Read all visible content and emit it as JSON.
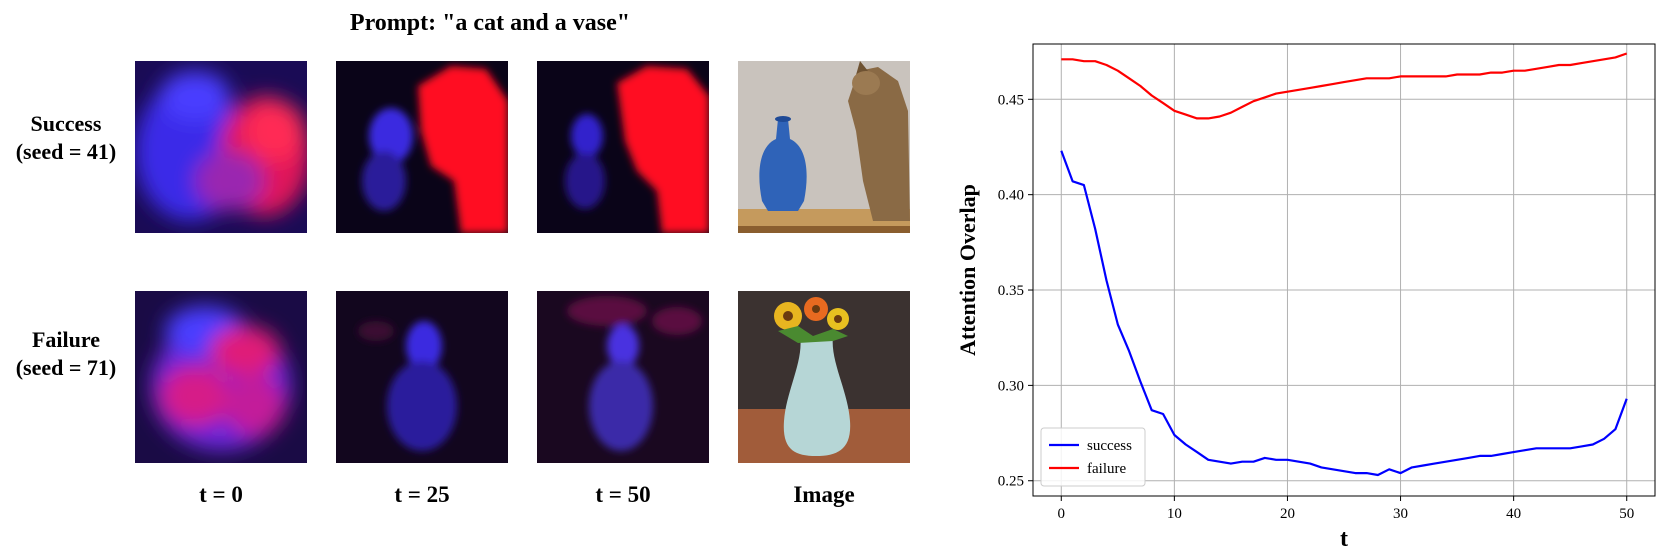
{
  "figure": {
    "title": "Prompt: \"a cat and a vase\"",
    "rows": [
      {
        "label_line1": "Success",
        "label_line2": "(seed = 41)"
      },
      {
        "label_line1": "Failure",
        "label_line2": "(seed = 71)"
      }
    ],
    "columns": [
      "t = 0",
      "t = 25",
      "t = 50",
      "Image"
    ]
  },
  "chart_data": {
    "type": "line",
    "xlabel": "t",
    "ylabel": "Attention Overlap",
    "xlim": [
      -2.5,
      52.5
    ],
    "ylim": [
      0.242,
      0.479
    ],
    "xticks": [
      0,
      10,
      20,
      30,
      40,
      50
    ],
    "yticks": [
      0.25,
      0.3,
      0.35,
      0.4,
      0.45
    ],
    "ytick_labels": [
      "0.25",
      "0.30",
      "0.35",
      "0.40",
      "0.45"
    ],
    "grid": true,
    "legend_position": "lower-left",
    "series": [
      {
        "name": "success",
        "color": "#0000ff",
        "x": [
          0,
          1,
          2,
          3,
          4,
          5,
          6,
          7,
          8,
          9,
          10,
          11,
          12,
          13,
          14,
          15,
          16,
          17,
          18,
          19,
          20,
          21,
          22,
          23,
          24,
          25,
          26,
          27,
          28,
          29,
          30,
          31,
          32,
          33,
          34,
          35,
          36,
          37,
          38,
          39,
          40,
          41,
          42,
          43,
          44,
          45,
          46,
          47,
          48,
          49,
          50
        ],
        "values": [
          0.423,
          0.407,
          0.405,
          0.382,
          0.355,
          0.332,
          0.318,
          0.302,
          0.287,
          0.285,
          0.274,
          0.269,
          0.265,
          0.261,
          0.26,
          0.259,
          0.26,
          0.26,
          0.262,
          0.261,
          0.261,
          0.26,
          0.259,
          0.257,
          0.256,
          0.255,
          0.254,
          0.254,
          0.253,
          0.256,
          0.254,
          0.257,
          0.258,
          0.259,
          0.26,
          0.261,
          0.262,
          0.263,
          0.263,
          0.264,
          0.265,
          0.266,
          0.267,
          0.267,
          0.267,
          0.267,
          0.268,
          0.269,
          0.272,
          0.277,
          0.293
        ]
      },
      {
        "name": "failure",
        "color": "#ff0000",
        "x": [
          0,
          1,
          2,
          3,
          4,
          5,
          6,
          7,
          8,
          9,
          10,
          11,
          12,
          13,
          14,
          15,
          16,
          17,
          18,
          19,
          20,
          21,
          22,
          23,
          24,
          25,
          26,
          27,
          28,
          29,
          30,
          31,
          32,
          33,
          34,
          35,
          36,
          37,
          38,
          39,
          40,
          41,
          42,
          43,
          44,
          45,
          46,
          47,
          48,
          49,
          50
        ],
        "values": [
          0.471,
          0.471,
          0.47,
          0.47,
          0.468,
          0.465,
          0.461,
          0.457,
          0.452,
          0.448,
          0.444,
          0.442,
          0.44,
          0.44,
          0.441,
          0.443,
          0.446,
          0.449,
          0.451,
          0.453,
          0.454,
          0.455,
          0.456,
          0.457,
          0.458,
          0.459,
          0.46,
          0.461,
          0.461,
          0.461,
          0.462,
          0.462,
          0.462,
          0.462,
          0.462,
          0.463,
          0.463,
          0.463,
          0.464,
          0.464,
          0.465,
          0.465,
          0.466,
          0.467,
          0.468,
          0.468,
          0.469,
          0.47,
          0.471,
          0.472,
          0.474
        ]
      }
    ]
  }
}
